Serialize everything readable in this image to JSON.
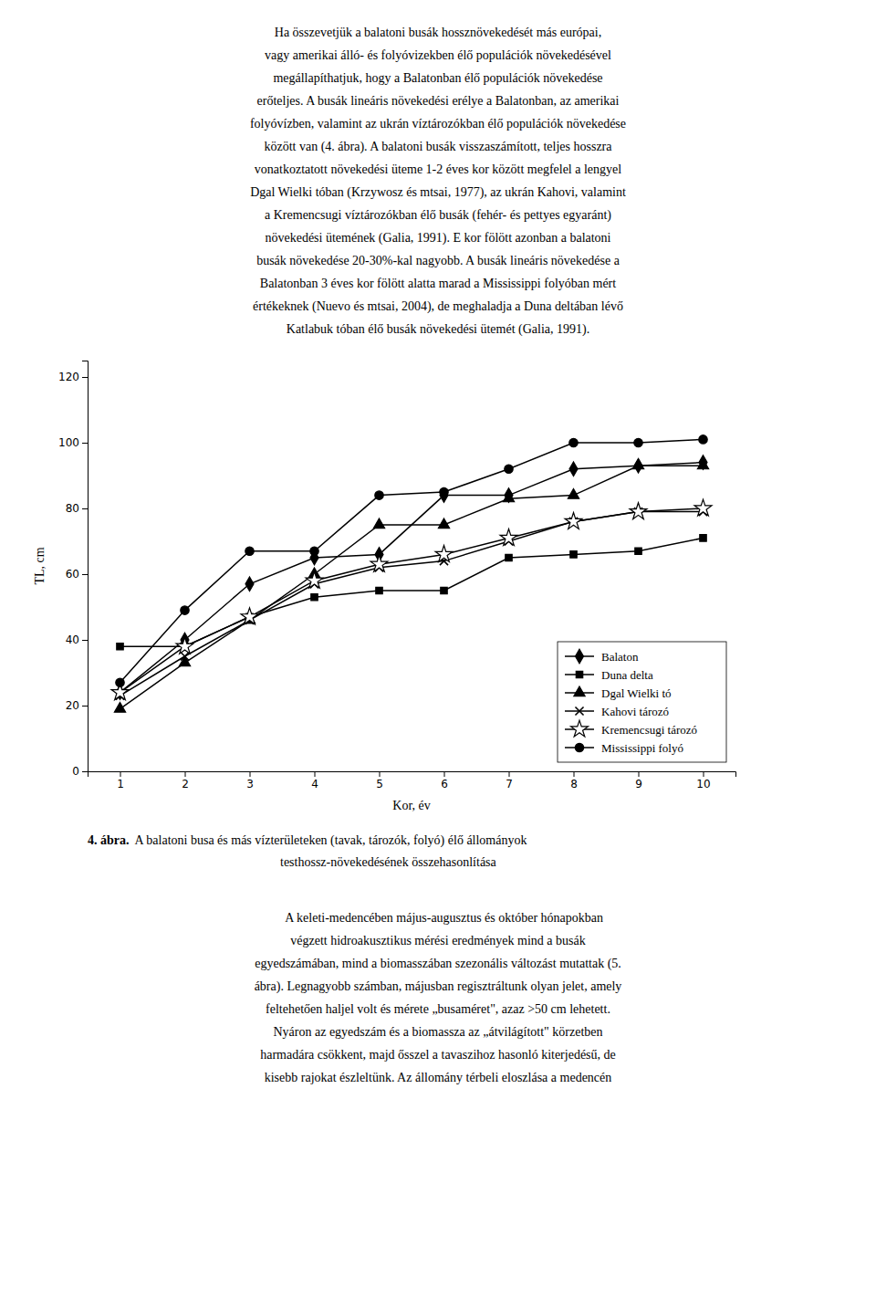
{
  "chart_data": {
    "type": "line",
    "xlabel": "Kor, év",
    "ylabel": "TL, cm",
    "x": [
      1,
      2,
      3,
      4,
      5,
      6,
      7,
      8,
      9,
      10
    ],
    "xlim": [
      0.5,
      10.5
    ],
    "ylim": [
      0,
      125
    ],
    "xticks": [
      1,
      2,
      3,
      4,
      5,
      6,
      7,
      8,
      9,
      10
    ],
    "yticks": [
      0,
      20,
      40,
      60,
      80,
      100,
      120
    ],
    "grid": false,
    "legend": "lower right",
    "series": [
      {
        "name": "Balaton",
        "color": "#000000",
        "marker": "diamond",
        "values": [
          24,
          40,
          57,
          65,
          66,
          84,
          84,
          92,
          93,
          94
        ]
      },
      {
        "name": "Duna delta",
        "color": "#000000",
        "marker": "square",
        "values": [
          38,
          38,
          47,
          53,
          55,
          55,
          65,
          66,
          67,
          71
        ]
      },
      {
        "name": "Dgal Wielki tó",
        "color": "#000000",
        "marker": "triangle",
        "values": [
          19,
          33,
          46,
          60,
          75,
          75,
          83,
          84,
          93,
          93
        ]
      },
      {
        "name": "Kahovi tározó",
        "color": "#000000",
        "marker": "x",
        "values": [
          23,
          35,
          46,
          57,
          62,
          64,
          70,
          76,
          79,
          79
        ]
      },
      {
        "name": "Kremencsugi tározó",
        "color": "#000000",
        "marker": "star-open",
        "values": [
          24,
          38,
          47,
          58,
          63,
          66,
          71,
          76,
          79,
          80
        ]
      },
      {
        "name": "Mississippi folyó",
        "color": "#000000",
        "marker": "circle",
        "values": [
          27,
          49,
          67,
          67,
          84,
          85,
          92,
          100,
          100,
          101
        ]
      }
    ],
    "annotations": [
      "Ha összevetjük a balatoni busák hossznövekedését más európai,",
      "vagy amerikai álló- és folyóvizekben élő populációk növekedésével",
      "megállapíthatjuk, hogy a Balatonban élő populációk növekedése",
      "erőteljes. A busák lineáris növekedési erélye a Balatonban, az amerikai",
      "folyóvízben, valamint az ukrán víztározókban élő populációk növekedése",
      "között van (4. ábra). A balatoni busák visszaszámított, teljes hosszra",
      "vonatkoztatott növekedési üteme 1-2 éves kor között megfelel a lengyel",
      "Dgal Wielki tóban (Krzywosz és mtsai, 1977), az ukrán Kahovi, valamint",
      "a Kremencsugi víztározókban élő busák (fehér- és pettyes egyaránt)",
      "növekedési ütemének (Galia, 1991). E kor fölött azonban a balatoni",
      "busák növekedése 20-30%-kal nagyobb. A busák lineáris növekedése a",
      "Balatonban 3 éves kor fölött alatta marad a Mississippi folyóban mért",
      "értékeknek (Nuevo és mtsai, 2004), de meghaladja a Duna deltában lévő",
      "Katlabuk tóban élő busák növekedési ütemét (Galia, 1991).",
      "4. ábra.",
      "A balatoni busa és más vízterületeken (tavak, tározók, folyó) élő állományok",
      "testhossz-növekedésének összehasonlítása",
      "    A keleti-medencében május-augusztus és október hónapokban",
      "végzett hidroakusztikus mérési eredmények mind a busák",
      "egyedszámában, mind a biomasszában szezonális változást mutattak (5.",
      "ábra). Legnagyobb számban, májusban regisztráltunk olyan jelet, amely",
      "feltehetően haljel volt és mérete „busaméret\", azaz >50 cm lehetett.",
      "Nyáron az egyedszám és a biomassza az „átvilágított\" körzetben",
      "harmadára csökkent, majd ősszel a tavaszihoz hasonló kiterjedésű, de",
      "kisebb rajokat észleltünk. Az állomány térbeli eloszlása a medencén"
    ]
  }
}
